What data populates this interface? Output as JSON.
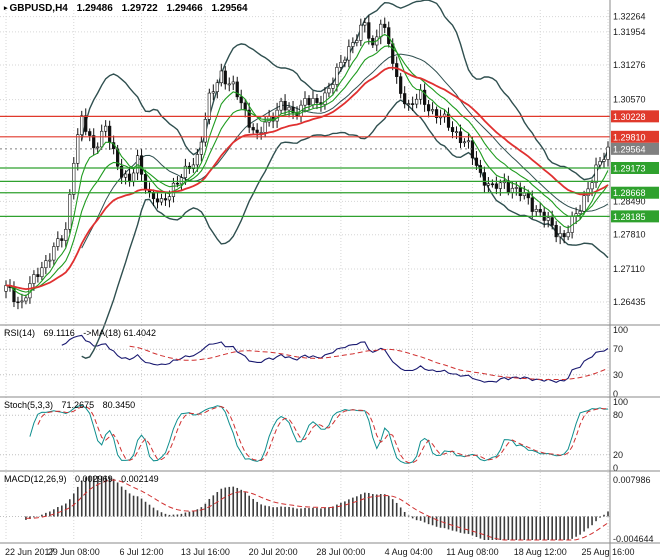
{
  "symbol_bar": {
    "marker": "▸",
    "symbol_period": "GBPUSD,H4",
    "open": "1.29486",
    "high": "1.29722",
    "low": "1.29466",
    "close": "1.29564"
  },
  "indicator_labels": {
    "rsi": {
      "name": "RSI(14)",
      "value": "69.1116",
      "ma_name": "->MA(18)",
      "ma_value": "61.4042"
    },
    "stoch": {
      "name": "Stoch(5,3,3)",
      "main_value": "71.2675",
      "signal_value": "80.3450"
    },
    "macd": {
      "name": "MACD(12,26,9)",
      "main_value": "0.002969",
      "signal_value": "0.002149"
    }
  },
  "colors": {
    "background": "#ffffff",
    "grid": "#d6d6d6",
    "separator": "#8a8a8a",
    "candle_bull": "#ffffff",
    "candle_bear": "#101010",
    "candle_outline": "#101010",
    "bollinger": "#2f4f4f",
    "ma_red": "#e03030",
    "ma_green": "#1f9b1f",
    "level_red": "#e0392b",
    "level_green": "#2fa12e",
    "current_price": "#808080",
    "rsi_line": "#191970",
    "signal_red": "#d03030",
    "stoch_line": "#0e8e8e",
    "macd_hist": "#3c3c3c",
    "axis_text": "#1a1a1a"
  },
  "chart_data": {
    "type": "candlestick",
    "symbol": "GBPUSD",
    "timeframe": "H4",
    "ohlc_current": {
      "open": 1.29486,
      "high": 1.29722,
      "low": 1.29466,
      "close": 1.29564
    },
    "x_labels": [
      "22 Jun 2017",
      "29 Jun 08:00",
      "6 Jul 12:00",
      "13 Jul 16:00",
      "20 Jul 20:00",
      "28 Jul 00:00",
      "4 Aug 04:00",
      "11 Aug 08:00",
      "18 Aug 12:00",
      "25 Aug 16:00"
    ],
    "price_axis": {
      "min": 1.2615,
      "max": 1.324,
      "grid_labels": [
        "1.32264",
        "1.31954",
        "1.31276",
        "1.30570",
        "1.28490",
        "1.27810",
        "1.27110",
        "1.26435"
      ]
    },
    "levels": [
      {
        "price": 1.30228,
        "label": "1.30228",
        "color": "red"
      },
      {
        "price": 1.2981,
        "label": "1.29810",
        "color": "red"
      },
      {
        "price": 1.29173,
        "label": "1.29173",
        "color": "green"
      },
      {
        "price": 1.289,
        "label": "",
        "color": "green"
      },
      {
        "price": 1.28668,
        "label": "1.28668",
        "color": "green"
      },
      {
        "price": 1.28185,
        "label": "1.28185",
        "color": "green"
      }
    ],
    "current_price": {
      "price": 1.29564,
      "label": "1.29564"
    },
    "candles": {
      "count": 152,
      "keyframes": [
        [
          0,
          1.2672
        ],
        [
          4,
          1.2641
        ],
        [
          8,
          1.2706
        ],
        [
          12,
          1.2748
        ],
        [
          15,
          1.2792
        ],
        [
          17,
          1.2938
        ],
        [
          19,
          1.3015
        ],
        [
          22,
          1.2962
        ],
        [
          25,
          1.2996
        ],
        [
          28,
          1.2925
        ],
        [
          31,
          1.2886
        ],
        [
          33,
          1.2931
        ],
        [
          36,
          1.2863
        ],
        [
          39,
          1.2841
        ],
        [
          42,
          1.2883
        ],
        [
          45,
          1.2906
        ],
        [
          48,
          1.2942
        ],
        [
          51,
          1.3056
        ],
        [
          54,
          1.3112
        ],
        [
          57,
          1.3081
        ],
        [
          60,
          1.3031
        ],
        [
          63,
          1.2981
        ],
        [
          66,
          1.3016
        ],
        [
          69,
          1.3049
        ],
        [
          72,
          1.3023
        ],
        [
          75,
          1.3059
        ],
        [
          78,
          1.3043
        ],
        [
          81,
          1.3083
        ],
        [
          84,
          1.3126
        ],
        [
          87,
          1.3179
        ],
        [
          90,
          1.3209
        ],
        [
          92,
          1.3161
        ],
        [
          94,
          1.3223
        ],
        [
          96,
          1.3169
        ],
        [
          98,
          1.3093
        ],
        [
          101,
          1.3043
        ],
        [
          104,
          1.3063
        ],
        [
          107,
          1.3033
        ],
        [
          110,
          1.3013
        ],
        [
          113,
          1.2989
        ],
        [
          116,
          1.2959
        ],
        [
          119,
          1.2906
        ],
        [
          122,
          1.2873
        ],
        [
          125,
          1.2889
        ],
        [
          128,
          1.2869
        ],
        [
          131,
          1.2853
        ],
        [
          134,
          1.2823
        ],
        [
          137,
          1.2796
        ],
        [
          140,
          1.2777
        ],
        [
          143,
          1.2819
        ],
        [
          146,
          1.2879
        ],
        [
          149,
          1.2926
        ],
        [
          151,
          1.2956
        ]
      ]
    },
    "overlays": {
      "bollinger": {
        "period": 20,
        "deviation": 2
      },
      "ma_fast_period": 7,
      "ma_mid_period": 14,
      "ma_slow_period": 30
    },
    "indicators": {
      "rsi": {
        "period": 14,
        "ma_period": 18,
        "current": 69.1116,
        "ma_current": 61.4042,
        "levels": [
          70,
          30
        ],
        "scale_labels": [
          "100",
          "70",
          "30",
          "0"
        ]
      },
      "stoch": {
        "k_period": 5,
        "slowing": 3,
        "d_period": 3,
        "current_k": 71.2675,
        "current_d": 80.345,
        "levels": [
          80,
          20
        ],
        "scale_labels": [
          "100",
          "80",
          "20",
          "0"
        ]
      },
      "macd": {
        "fast": 12,
        "slow": 26,
        "signal": 9,
        "current": 0.002969,
        "current_signal": 0.002149,
        "scale_top": 0.007986,
        "scale_bottom": -0.004644,
        "scale_top_label": "0.007986",
        "scale_bottom_label": "-0.004644"
      }
    }
  }
}
